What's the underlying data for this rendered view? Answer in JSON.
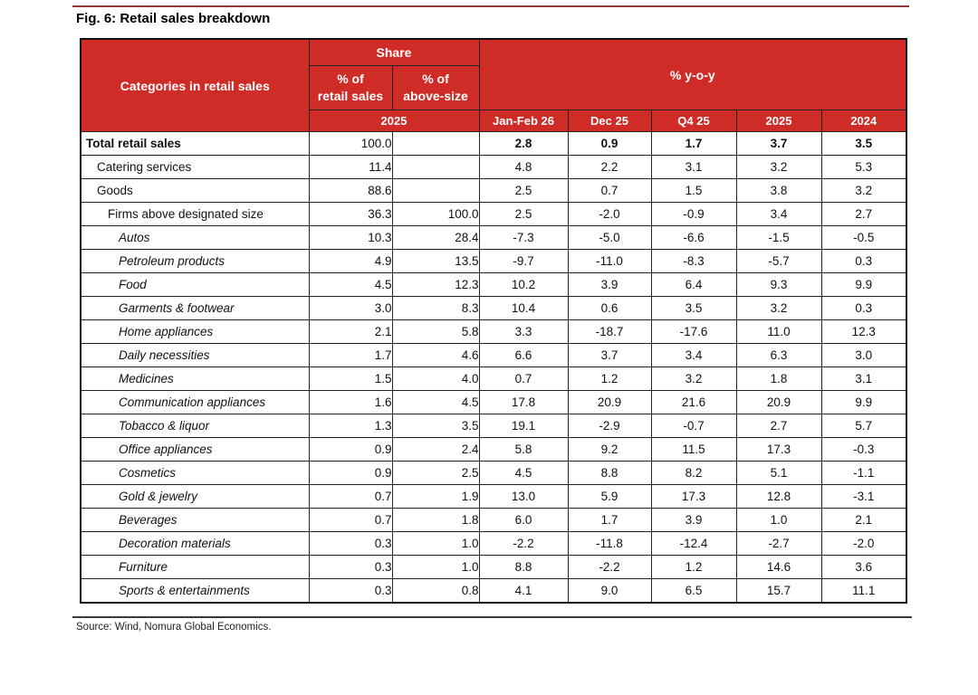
{
  "page": {
    "title": "Fig. 6: Retail sales breakdown",
    "source": "Source: Wind, Nomura Global Economics."
  },
  "colors": {
    "header_red": "#cf2b27",
    "top_rule": "#8e3a38",
    "border_dark": "#111111"
  },
  "table": {
    "header": {
      "categories_label": "Categories in retail sales",
      "share_label": "Share",
      "yoy_label": "% y-o-y",
      "share_sub_retail": "% of\nretail sales",
      "share_sub_above": "% of\nabove-size",
      "share_year": "2025",
      "yoy_cols": [
        "Jan-Feb 26",
        "Dec 25",
        "Q4 25",
        "2025",
        "2024"
      ]
    },
    "rows": [
      {
        "label": "Total retail sales",
        "indent": 0,
        "bold": true,
        "italic": false,
        "share_retail": "100.0",
        "share_above": "",
        "yoy": [
          "2.8",
          "0.9",
          "1.7",
          "3.7",
          "3.5"
        ]
      },
      {
        "label": "Catering services",
        "indent": 1,
        "bold": false,
        "italic": false,
        "share_retail": "11.4",
        "share_above": "",
        "yoy": [
          "4.8",
          "2.2",
          "3.1",
          "3.2",
          "5.3"
        ]
      },
      {
        "label": "Goods",
        "indent": 1,
        "bold": false,
        "italic": false,
        "share_retail": "88.6",
        "share_above": "",
        "yoy": [
          "2.5",
          "0.7",
          "1.5",
          "3.8",
          "3.2"
        ]
      },
      {
        "label": "Firms above designated size",
        "indent": 2,
        "bold": false,
        "italic": false,
        "share_retail": "36.3",
        "share_above": "100.0",
        "yoy": [
          "2.5",
          "-2.0",
          "-0.9",
          "3.4",
          "2.7"
        ]
      },
      {
        "label": "Autos",
        "indent": 3,
        "bold": false,
        "italic": true,
        "share_retail": "10.3",
        "share_above": "28.4",
        "yoy": [
          "-7.3",
          "-5.0",
          "-6.6",
          "-1.5",
          "-0.5"
        ]
      },
      {
        "label": "Petroleum products",
        "indent": 3,
        "bold": false,
        "italic": true,
        "share_retail": "4.9",
        "share_above": "13.5",
        "yoy": [
          "-9.7",
          "-11.0",
          "-8.3",
          "-5.7",
          "0.3"
        ]
      },
      {
        "label": "Food",
        "indent": 3,
        "bold": false,
        "italic": true,
        "share_retail": "4.5",
        "share_above": "12.3",
        "yoy": [
          "10.2",
          "3.9",
          "6.4",
          "9.3",
          "9.9"
        ]
      },
      {
        "label": "Garments & footwear",
        "indent": 3,
        "bold": false,
        "italic": true,
        "share_retail": "3.0",
        "share_above": "8.3",
        "yoy": [
          "10.4",
          "0.6",
          "3.5",
          "3.2",
          "0.3"
        ]
      },
      {
        "label": "Home appliances",
        "indent": 3,
        "bold": false,
        "italic": true,
        "share_retail": "2.1",
        "share_above": "5.8",
        "yoy": [
          "3.3",
          "-18.7",
          "-17.6",
          "11.0",
          "12.3"
        ]
      },
      {
        "label": "Daily necessities",
        "indent": 3,
        "bold": false,
        "italic": true,
        "share_retail": "1.7",
        "share_above": "4.6",
        "yoy": [
          "6.6",
          "3.7",
          "3.4",
          "6.3",
          "3.0"
        ]
      },
      {
        "label": "Medicines",
        "indent": 3,
        "bold": false,
        "italic": true,
        "share_retail": "1.5",
        "share_above": "4.0",
        "yoy": [
          "0.7",
          "1.2",
          "3.2",
          "1.8",
          "3.1"
        ]
      },
      {
        "label": "Communication appliances",
        "indent": 3,
        "bold": false,
        "italic": true,
        "share_retail": "1.6",
        "share_above": "4.5",
        "yoy": [
          "17.8",
          "20.9",
          "21.6",
          "20.9",
          "9.9"
        ]
      },
      {
        "label": "Tobacco & liquor",
        "indent": 3,
        "bold": false,
        "italic": true,
        "share_retail": "1.3",
        "share_above": "3.5",
        "yoy": [
          "19.1",
          "-2.9",
          "-0.7",
          "2.7",
          "5.7"
        ]
      },
      {
        "label": "Office appliances",
        "indent": 3,
        "bold": false,
        "italic": true,
        "share_retail": "0.9",
        "share_above": "2.4",
        "yoy": [
          "5.8",
          "9.2",
          "11.5",
          "17.3",
          "-0.3"
        ]
      },
      {
        "label": "Cosmetics",
        "indent": 3,
        "bold": false,
        "italic": true,
        "share_retail": "0.9",
        "share_above": "2.5",
        "yoy": [
          "4.5",
          "8.8",
          "8.2",
          "5.1",
          "-1.1"
        ]
      },
      {
        "label": "Gold & jewelry",
        "indent": 3,
        "bold": false,
        "italic": true,
        "share_retail": "0.7",
        "share_above": "1.9",
        "yoy": [
          "13.0",
          "5.9",
          "17.3",
          "12.8",
          "-3.1"
        ]
      },
      {
        "label": "Beverages",
        "indent": 3,
        "bold": false,
        "italic": true,
        "share_retail": "0.7",
        "share_above": "1.8",
        "yoy": [
          "6.0",
          "1.7",
          "3.9",
          "1.0",
          "2.1"
        ]
      },
      {
        "label": "Decoration materials",
        "indent": 3,
        "bold": false,
        "italic": true,
        "share_retail": "0.3",
        "share_above": "1.0",
        "yoy": [
          "-2.2",
          "-11.8",
          "-12.4",
          "-2.7",
          "-2.0"
        ]
      },
      {
        "label": "Furniture",
        "indent": 3,
        "bold": false,
        "italic": true,
        "share_retail": "0.3",
        "share_above": "1.0",
        "yoy": [
          "8.8",
          "-2.2",
          "1.2",
          "14.6",
          "3.6"
        ]
      },
      {
        "label": "Sports & entertainments",
        "indent": 3,
        "bold": false,
        "italic": true,
        "share_retail": "0.3",
        "share_above": "0.8",
        "yoy": [
          "4.1",
          "9.0",
          "6.5",
          "15.7",
          "11.1"
        ]
      }
    ]
  },
  "chart_data": {
    "type": "table",
    "title": "Fig. 6: Retail sales breakdown",
    "columns": [
      "Categories in retail sales",
      "% of retail sales 2025",
      "% of above-size 2025",
      "% y-o-y Jan-Feb 26",
      "% y-o-y Dec 25",
      "% y-o-y Q4 25",
      "% y-o-y 2025",
      "% y-o-y 2024"
    ]
  }
}
